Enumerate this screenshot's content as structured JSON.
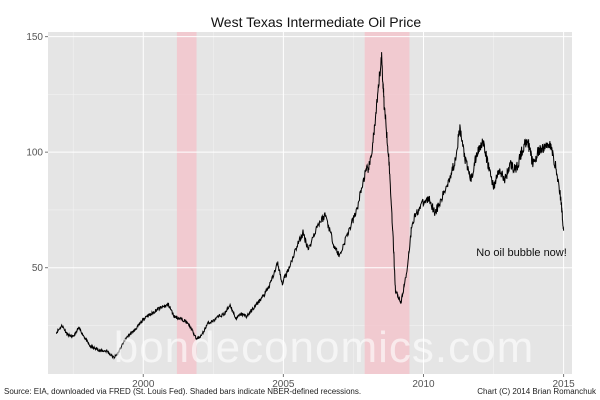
{
  "chart_data": {
    "type": "line",
    "title": "West Texas Intermediate Oil Price",
    "xlabel": "",
    "ylabel": "",
    "xlim": [
      1996.6,
      2015.3
    ],
    "ylim": [
      4,
      152
    ],
    "x_ticks": [
      2000,
      2005,
      2010,
      2015
    ],
    "y_ticks": [
      50,
      100,
      150
    ],
    "grid": true,
    "legend": "none",
    "colors": {
      "panel": "#e5e5e5",
      "grid_major": "#ffffff",
      "line": "#000000",
      "recession": "#f4c3ca"
    },
    "recessions": [
      {
        "start": 2001.2,
        "end": 2001.9
      },
      {
        "start": 2007.9,
        "end": 2009.5
      }
    ],
    "series": [
      {
        "values_x": [
          1996.9,
          1997.1,
          1997.3,
          1997.5,
          1997.7,
          1997.9,
          1998.1,
          1998.3,
          1998.5,
          1998.7,
          1998.95,
          1999.1,
          1999.3,
          1999.5,
          1999.7,
          1999.9,
          2000.1,
          2000.3,
          2000.5,
          2000.7,
          2000.9,
          2001.1,
          2001.3,
          2001.5,
          2001.7,
          2001.9,
          2002.1,
          2002.3,
          2002.5,
          2002.7,
          2002.9,
          2003.1,
          2003.3,
          2003.5,
          2003.7,
          2003.9,
          2004.1,
          2004.3,
          2004.5,
          2004.8,
          2004.95,
          2005.2,
          2005.5,
          2005.7,
          2005.9,
          2006.2,
          2006.5,
          2006.8,
          2007.0,
          2007.3,
          2007.6,
          2007.9,
          2008.1,
          2008.3,
          2008.5,
          2008.6,
          2008.75,
          2008.9,
          2009.0,
          2009.2,
          2009.4,
          2009.6,
          2009.9,
          2010.2,
          2010.4,
          2010.6,
          2010.9,
          2011.1,
          2011.3,
          2011.5,
          2011.7,
          2011.9,
          2012.1,
          2012.3,
          2012.5,
          2012.7,
          2012.9,
          2013.1,
          2013.3,
          2013.5,
          2013.7,
          2013.9,
          2014.1,
          2014.3,
          2014.5,
          2014.7,
          2014.9,
          2015.0
        ],
        "values": [
          22,
          25,
          21,
          20,
          24,
          20,
          16,
          15,
          14,
          14,
          11,
          13,
          18,
          21,
          23,
          26,
          29,
          30,
          32,
          33,
          34,
          29,
          28,
          27,
          24,
          19,
          21,
          26,
          27,
          29,
          30,
          34,
          28,
          30,
          29,
          32,
          35,
          38,
          42,
          52,
          43,
          50,
          60,
          65,
          58,
          68,
          73,
          60,
          55,
          65,
          74,
          90,
          95,
          115,
          142,
          120,
          100,
          67,
          40,
          35,
          48,
          70,
          77,
          80,
          74,
          78,
          88,
          95,
          110,
          96,
          88,
          99,
          105,
          95,
          85,
          92,
          88,
          95,
          92,
          100,
          106,
          95,
          100,
          102,
          104,
          95,
          80,
          66
        ]
      }
    ],
    "annotations": [
      {
        "text": "No oil bubble now!",
        "x": 2013.5,
        "y": 55
      }
    ],
    "watermark": "bondeconomics.com",
    "source_note": "Source: EIA, downloaded via FRED (St. Louis Fed). Shaded bars indicate NBER-defined recessions.",
    "credit_note": "Chart (C) 2014 Brian Romanchuk"
  }
}
